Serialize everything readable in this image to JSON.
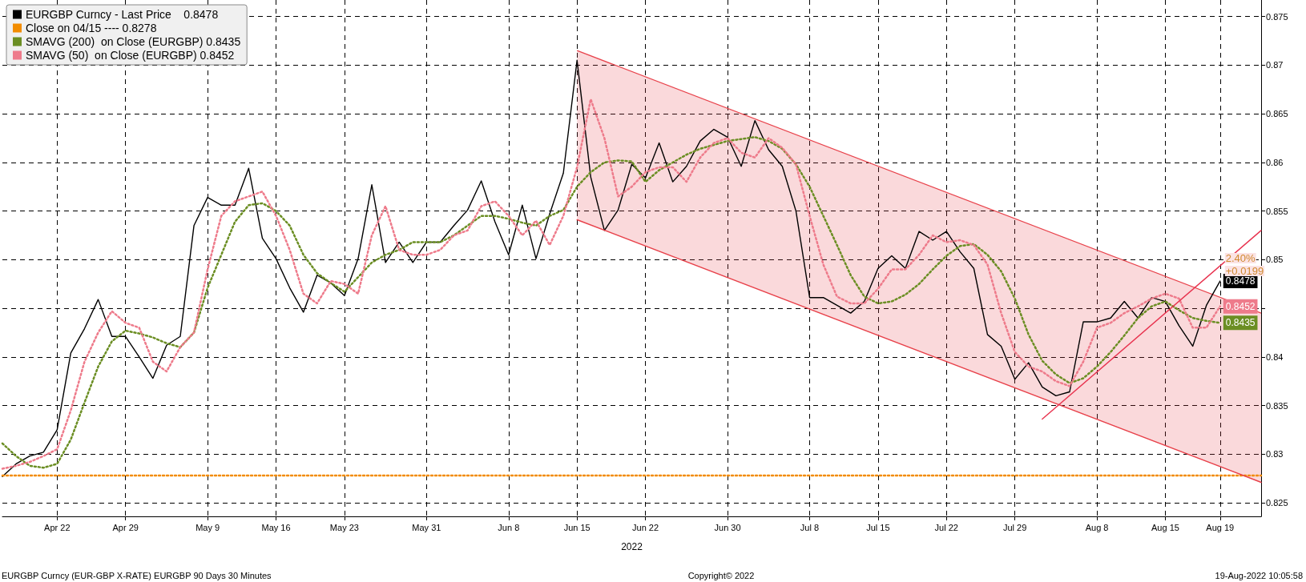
{
  "chart_data": {
    "type": "line",
    "xlabel": "2022",
    "categories": [
      null,
      null,
      null,
      null,
      "Apr 22",
      null,
      null,
      null,
      null,
      "Apr 29",
      null,
      null,
      null,
      null,
      null,
      "May 9",
      null,
      null,
      null,
      null,
      "May 16",
      null,
      null,
      null,
      null,
      "May 23",
      null,
      null,
      null,
      null,
      null,
      "May 31",
      null,
      null,
      null,
      null,
      null,
      "Jun 8",
      null,
      null,
      null,
      null,
      "Jun 15",
      null,
      null,
      null,
      null,
      "Jun 22",
      null,
      null,
      null,
      null,
      null,
      "Jun 30",
      null,
      null,
      null,
      null,
      null,
      "Jul 8",
      null,
      null,
      null,
      null,
      "Jul 15",
      null,
      null,
      null,
      null,
      "Jul 22",
      null,
      null,
      null,
      null,
      "Jul 29",
      null,
      null,
      null,
      null,
      null,
      "Aug 8",
      null,
      null,
      null,
      null,
      "Aug 15",
      null,
      null,
      null,
      "Aug 19",
      null,
      null,
      null
    ],
    "series": [
      {
        "name": "EURGBP Curncy - Last Price    0.8478",
        "color": "#000000",
        "line_style": "solid",
        "values": [
          0.8277,
          0.829,
          0.8298,
          0.8302,
          0.8325,
          0.8404,
          0.8429,
          0.8459,
          0.8421,
          0.8421,
          0.84,
          0.8378,
          0.8412,
          0.8421,
          0.8535,
          0.8564,
          0.8556,
          0.8556,
          0.8594,
          0.8522,
          0.8501,
          0.8471,
          0.8446,
          0.8484,
          0.8476,
          0.8463,
          0.8501,
          0.8577,
          0.8497,
          0.8518,
          0.8497,
          0.8518,
          0.8518,
          0.8535,
          0.8551,
          0.8581,
          0.8539,
          0.8505,
          0.8556,
          0.8501,
          0.8547,
          0.8589,
          0.8705,
          0.8585,
          0.853,
          0.8551,
          0.8598,
          0.8584,
          0.862,
          0.858,
          0.8596,
          0.8622,
          0.8634,
          0.8626,
          0.8596,
          0.8643,
          0.8613,
          0.8596,
          0.855,
          0.8461,
          0.8461,
          0.8453,
          0.8445,
          0.8457,
          0.8491,
          0.8504,
          0.8491,
          0.8529,
          0.852,
          0.8529,
          0.8508,
          0.8491,
          0.8423,
          0.8411,
          0.8377,
          0.8394,
          0.8369,
          0.836,
          0.8364,
          0.8436,
          0.8436,
          0.844,
          0.8457,
          0.844,
          0.8461,
          0.8457,
          0.8432,
          0.8411,
          0.8453,
          0.8478,
          null,
          null,
          null
        ],
        "value_labels": [
          null,
          null,
          null,
          null,
          null,
          null,
          null,
          null,
          null,
          null,
          null,
          null,
          null,
          null,
          null,
          null,
          null,
          null,
          null,
          null,
          null,
          null,
          null,
          null,
          null,
          null,
          null,
          null,
          null,
          null,
          null,
          null,
          null,
          null,
          null,
          null,
          null,
          null,
          null,
          null,
          null,
          null,
          null,
          null,
          null,
          null,
          null,
          null,
          null,
          null,
          null,
          null,
          null,
          null,
          null,
          null,
          null,
          null,
          null,
          null,
          null,
          null,
          null,
          null,
          null,
          null,
          null,
          null,
          null,
          null,
          null,
          null,
          null,
          null,
          null,
          null,
          null,
          null,
          null,
          null,
          null,
          null,
          null,
          null,
          null,
          null,
          null,
          null,
          null,
          "0.8478",
          null,
          null,
          null
        ]
      },
      {
        "name": "Close on 04/15 ---- 0.8278",
        "color": "#f28c00",
        "line_style": "dotted",
        "values": [
          0.8278,
          null,
          null,
          null,
          null,
          null,
          null,
          null,
          null,
          null,
          null,
          null,
          null,
          null,
          null,
          null,
          null,
          null,
          null,
          null,
          null,
          null,
          null,
          null,
          null,
          null,
          null,
          null,
          null,
          null,
          null,
          null,
          null,
          null,
          null,
          null,
          null,
          null,
          null,
          null,
          null,
          null,
          null,
          null,
          null,
          null,
          null,
          null,
          null,
          null,
          null,
          null,
          null,
          null,
          null,
          null,
          null,
          null,
          null,
          null,
          null,
          null,
          null,
          null,
          null,
          null,
          null,
          null,
          null,
          null,
          null,
          null,
          null,
          null,
          null,
          null,
          null,
          null,
          null,
          null,
          null,
          null,
          null,
          null,
          null,
          null,
          null,
          null,
          null,
          null,
          null,
          null,
          0.8278
        ]
      },
      {
        "name": "SMAVG (200)  on Close (EURGBP) 0.8435",
        "color": "#6b8e23",
        "line_style": "dotted",
        "values": [
          0.8311,
          0.8298,
          0.8288,
          0.8286,
          0.829,
          0.8315,
          0.8353,
          0.839,
          0.8416,
          0.8427,
          0.8424,
          0.842,
          0.8414,
          0.841,
          0.8425,
          0.8471,
          0.8505,
          0.8539,
          0.8556,
          0.8558,
          0.855,
          0.8535,
          0.8505,
          0.8486,
          0.8476,
          0.8467,
          0.8482,
          0.8497,
          0.8505,
          0.851,
          0.8518,
          0.8518,
          0.8518,
          0.8525,
          0.8535,
          0.8545,
          0.8545,
          0.8542,
          0.8538,
          0.8535,
          0.8545,
          0.8551,
          0.8575,
          0.859,
          0.86,
          0.8602,
          0.8601,
          0.858,
          0.8592,
          0.86,
          0.8608,
          0.8614,
          0.8618,
          0.8622,
          0.8624,
          0.8626,
          0.8622,
          0.8614,
          0.8598,
          0.8575,
          0.8545,
          0.8515,
          0.8484,
          0.8462,
          0.8455,
          0.8457,
          0.8464,
          0.8475,
          0.849,
          0.8504,
          0.8514,
          0.8516,
          0.8505,
          0.8488,
          0.846,
          0.8423,
          0.8396,
          0.8382,
          0.8373,
          0.8378,
          0.839,
          0.8405,
          0.8422,
          0.844,
          0.8452,
          0.8457,
          0.8448,
          0.844,
          0.8437,
          0.8435,
          null,
          null,
          null
        ],
        "value_labels": [
          null,
          null,
          null,
          null,
          null,
          null,
          null,
          null,
          null,
          null,
          null,
          null,
          null,
          null,
          null,
          null,
          null,
          null,
          null,
          null,
          null,
          null,
          null,
          null,
          null,
          null,
          null,
          null,
          null,
          null,
          null,
          null,
          null,
          null,
          null,
          null,
          null,
          null,
          null,
          null,
          null,
          null,
          null,
          null,
          null,
          null,
          null,
          null,
          null,
          null,
          null,
          null,
          null,
          null,
          null,
          null,
          null,
          null,
          null,
          null,
          null,
          null,
          null,
          null,
          null,
          null,
          null,
          null,
          null,
          null,
          null,
          null,
          null,
          null,
          null,
          null,
          null,
          null,
          null,
          null,
          null,
          null,
          null,
          null,
          null,
          null,
          null,
          null,
          null,
          "0.8435",
          null,
          null,
          null
        ]
      },
      {
        "name": "SMAVG (50)  on Close (EURGBP) 0.8452",
        "color": "#ee7b8b",
        "line_style": "dotted",
        "values": [
          0.8285,
          0.8288,
          0.8292,
          0.8298,
          0.8305,
          0.8345,
          0.8395,
          0.8425,
          0.8447,
          0.8435,
          0.843,
          0.8395,
          0.8385,
          0.841,
          0.8425,
          0.849,
          0.8545,
          0.856,
          0.8565,
          0.857,
          0.8545,
          0.851,
          0.8465,
          0.8455,
          0.8478,
          0.8475,
          0.8465,
          0.8525,
          0.8555,
          0.851,
          0.8505,
          0.8505,
          0.851,
          0.8525,
          0.853,
          0.8555,
          0.856,
          0.8545,
          0.8525,
          0.854,
          0.8515,
          0.8545,
          0.8595,
          0.8665,
          0.8625,
          0.8565,
          0.8575,
          0.859,
          0.8595,
          0.8595,
          0.858,
          0.8605,
          0.862,
          0.8625,
          0.861,
          0.8605,
          0.8625,
          0.8615,
          0.8598,
          0.8545,
          0.8495,
          0.8462,
          0.8455,
          0.8455,
          0.847,
          0.849,
          0.849,
          0.8505,
          0.8525,
          0.8518,
          0.852,
          0.8515,
          0.8495,
          0.8445,
          0.8405,
          0.839,
          0.8385,
          0.8375,
          0.837,
          0.8395,
          0.843,
          0.8435,
          0.8445,
          0.8452,
          0.846,
          0.8465,
          0.846,
          0.843,
          0.843,
          0.8452,
          null,
          null,
          null
        ],
        "value_labels": [
          null,
          null,
          null,
          null,
          null,
          null,
          null,
          null,
          null,
          null,
          null,
          null,
          null,
          null,
          null,
          null,
          null,
          null,
          null,
          null,
          null,
          null,
          null,
          null,
          null,
          null,
          null,
          null,
          null,
          null,
          null,
          null,
          null,
          null,
          null,
          null,
          null,
          null,
          null,
          null,
          null,
          null,
          null,
          null,
          null,
          null,
          null,
          null,
          null,
          null,
          null,
          null,
          null,
          null,
          null,
          null,
          null,
          null,
          null,
          null,
          null,
          null,
          null,
          null,
          null,
          null,
          null,
          null,
          null,
          null,
          null,
          null,
          null,
          null,
          null,
          null,
          null,
          null,
          null,
          null,
          null,
          null,
          null,
          null,
          null,
          null,
          null,
          null,
          null,
          "0.8452",
          null,
          null,
          null
        ]
      },
      {
        "color": "#e8414a",
        "line_style": "solid",
        "values": [
          null,
          null,
          null,
          null,
          null,
          null,
          null,
          null,
          null,
          null,
          null,
          null,
          null,
          null,
          null,
          null,
          null,
          null,
          null,
          null,
          null,
          null,
          null,
          null,
          null,
          null,
          null,
          null,
          null,
          null,
          null,
          null,
          null,
          null,
          null,
          null,
          null,
          null,
          null,
          null,
          null,
          null,
          0.8715,
          null,
          null,
          null,
          null,
          null,
          null,
          null,
          null,
          null,
          null,
          null,
          null,
          null,
          null,
          null,
          null,
          null,
          null,
          null,
          null,
          null,
          null,
          null,
          null,
          null,
          null,
          null,
          null,
          null,
          null,
          null,
          null,
          null,
          null,
          null,
          null,
          null,
          null,
          null,
          null,
          null,
          null,
          null,
          null,
          null,
          null,
          null,
          null,
          null,
          0.8445
        ],
        "upper": [
          null,
          null,
          null,
          null,
          null,
          null,
          null,
          null,
          null,
          null,
          null,
          null,
          null,
          null,
          null,
          null,
          null,
          null,
          null,
          null,
          null,
          null,
          null,
          null,
          null,
          null,
          null,
          null,
          null,
          null,
          null,
          null,
          null,
          null,
          null,
          null,
          null,
          null,
          null,
          null,
          null,
          null,
          0.8715,
          null,
          null,
          null,
          null,
          null,
          null,
          null,
          null,
          null,
          null,
          null,
          null,
          null,
          null,
          null,
          null,
          null,
          null,
          null,
          null,
          null,
          null,
          null,
          null,
          null,
          null,
          null,
          null,
          null,
          null,
          null,
          null,
          null,
          null,
          null,
          null,
          null,
          null,
          null,
          null,
          null,
          null,
          null,
          null,
          null,
          null,
          null,
          null,
          null,
          0.8445
        ],
        "lower": [
          null,
          null,
          null,
          null,
          null,
          null,
          null,
          null,
          null,
          null,
          null,
          null,
          null,
          null,
          null,
          null,
          null,
          null,
          null,
          null,
          null,
          null,
          null,
          null,
          null,
          null,
          null,
          null,
          null,
          null,
          null,
          null,
          null,
          null,
          null,
          null,
          null,
          null,
          null,
          null,
          null,
          null,
          0.8541,
          null,
          null,
          null,
          null,
          null,
          null,
          null,
          null,
          null,
          null,
          null,
          null,
          null,
          null,
          null,
          null,
          null,
          null,
          null,
          null,
          null,
          null,
          null,
          null,
          null,
          null,
          null,
          null,
          null,
          null,
          null,
          null,
          null,
          null,
          null,
          null,
          null,
          null,
          null,
          null,
          null,
          null,
          null,
          null,
          null,
          null,
          null,
          null,
          null,
          0.8271
        ]
      },
      {
        "color": "#e8414a",
        "line_style": "solid",
        "values": [
          null,
          null,
          null,
          null,
          null,
          null,
          null,
          null,
          null,
          null,
          null,
          null,
          null,
          null,
          null,
          null,
          null,
          null,
          null,
          null,
          null,
          null,
          null,
          null,
          null,
          null,
          null,
          null,
          null,
          null,
          null,
          null,
          null,
          null,
          null,
          null,
          null,
          null,
          null,
          null,
          null,
          null,
          0.8541,
          null,
          null,
          null,
          null,
          null,
          null,
          null,
          null,
          null,
          null,
          null,
          null,
          null,
          null,
          null,
          null,
          null,
          null,
          null,
          null,
          null,
          null,
          null,
          null,
          null,
          null,
          null,
          null,
          null,
          null,
          null,
          null,
          null,
          null,
          null,
          null,
          null,
          null,
          null,
          null,
          null,
          null,
          null,
          null,
          null,
          null,
          null,
          null,
          null,
          0.8271
        ]
      },
      {
        "color": "#e8334f",
        "line_style": "solid",
        "values": [
          null,
          null,
          null,
          null,
          null,
          null,
          null,
          null,
          null,
          null,
          null,
          null,
          null,
          null,
          null,
          null,
          null,
          null,
          null,
          null,
          null,
          null,
          null,
          null,
          null,
          null,
          null,
          null,
          null,
          null,
          null,
          null,
          null,
          null,
          null,
          null,
          null,
          null,
          null,
          null,
          null,
          null,
          null,
          null,
          null,
          null,
          null,
          null,
          null,
          null,
          null,
          null,
          null,
          null,
          null,
          null,
          null,
          null,
          null,
          null,
          null,
          null,
          null,
          null,
          null,
          null,
          null,
          null,
          null,
          null,
          null,
          null,
          null,
          null,
          null,
          null,
          0.8336,
          null,
          null,
          null,
          null,
          null,
          null,
          null,
          null,
          null,
          null,
          null,
          null,
          null,
          null,
          null,
          0.853
        ]
      }
    ],
    "ylim": [
      0.8236,
      0.8767
    ],
    "yticks": [
      0.825,
      0.83,
      0.835,
      0.84,
      {
        "value": 0.845,
        "label": null
      },
      0.85,
      0.855,
      0.86,
      0.865,
      0.87,
      0.875
    ],
    "grid": true,
    "legend": "top left",
    "marker": "none",
    "annotations": [
      {
        "text": "2.40%",
        "x": "Aug 19",
        "y": 0.8478
      },
      {
        "text": "+0.0199",
        "x": "Aug 19",
        "y": 0.8478
      },
      "EURGBP Curncy (EUR-GBP X-RATE) EURGBP 90 Days 30 Minutes",
      "Copyright© 2022",
      "19-Aug-2022 10:05:58"
    ]
  }
}
